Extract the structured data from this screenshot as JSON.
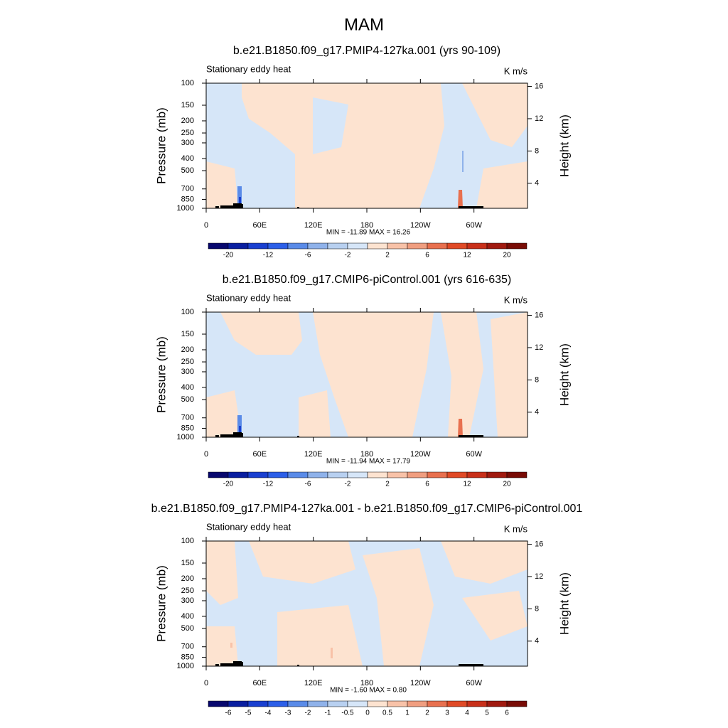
{
  "title": "MAM",
  "chart_data": [
    {
      "type": "contour",
      "title": "b.e21.B1850.f09_g17.PMIP4-127ka.001 (yrs 90-109)",
      "left_label": "Stationary eddy heat",
      "right_label": "K m/s",
      "ylabel": "Pressure (mb)",
      "y2label": "Height (km)",
      "xlim": [
        0,
        360
      ],
      "xticks": [
        0,
        {
          "value": 60,
          "label": "60E"
        },
        {
          "value": 120,
          "label": "120E"
        },
        180,
        {
          "value": 240,
          "label": "120W"
        },
        {
          "value": 300,
          "label": "60W"
        }
      ],
      "ylim": [
        1000,
        100
      ],
      "yscale": "log",
      "yticks": [
        100,
        150,
        200,
        250,
        300,
        400,
        500,
        700,
        850,
        1000
      ],
      "y2lim": [
        0.9,
        16.4
      ],
      "y2ticks": [
        4,
        8,
        12,
        16
      ],
      "stats": "MIN = -11.89  MAX =  16.26",
      "colorbar": {
        "colors": [
          "#08086e",
          "#0a1fa0",
          "#1a40d0",
          "#2c5fe8",
          "#5a8be8",
          "#8fb2ea",
          "#b8d0f0",
          "#d6e6f8",
          "#fde3d0",
          "#f8c2a8",
          "#f09e80",
          "#e8704f",
          "#e04a26",
          "#c8301a",
          "#a01a10",
          "#780c06"
        ],
        "labels": [
          -20,
          -12,
          -6,
          -2,
          2,
          6,
          12,
          20
        ]
      }
    },
    {
      "type": "contour",
      "title": "b.e21.B1850.f09_g17.CMIP6-piControl.001 (yrs 616-635)",
      "left_label": "Stationary eddy heat",
      "right_label": "K m/s",
      "ylabel": "Pressure (mb)",
      "y2label": "Height (km)",
      "xlim": [
        0,
        360
      ],
      "xticks": [
        0,
        {
          "value": 60,
          "label": "60E"
        },
        {
          "value": 120,
          "label": "120E"
        },
        180,
        {
          "value": 240,
          "label": "120W"
        },
        {
          "value": 300,
          "label": "60W"
        }
      ],
      "ylim": [
        1000,
        100
      ],
      "yscale": "log",
      "yticks": [
        100,
        150,
        200,
        250,
        300,
        400,
        500,
        700,
        850,
        1000
      ],
      "y2lim": [
        0.9,
        16.4
      ],
      "y2ticks": [
        4,
        8,
        12,
        16
      ],
      "stats": "MIN = -11.94  MAX =  17.79",
      "colorbar": {
        "colors": [
          "#08086e",
          "#0a1fa0",
          "#1a40d0",
          "#2c5fe8",
          "#5a8be8",
          "#8fb2ea",
          "#b8d0f0",
          "#d6e6f8",
          "#fde3d0",
          "#f8c2a8",
          "#f09e80",
          "#e8704f",
          "#e04a26",
          "#c8301a",
          "#a01a10",
          "#780c06"
        ],
        "labels": [
          -20,
          -12,
          -6,
          -2,
          2,
          6,
          12,
          20
        ]
      }
    },
    {
      "type": "contour",
      "title": "b.e21.B1850.f09_g17.PMIP4-127ka.001 - b.e21.B1850.f09_g17.CMIP6-piControl.001",
      "left_label": "Stationary eddy heat",
      "right_label": "K m/s",
      "ylabel": "Pressure (mb)",
      "y2label": "Height (km)",
      "xlim": [
        0,
        360
      ],
      "xticks": [
        0,
        {
          "value": 60,
          "label": "60E"
        },
        {
          "value": 120,
          "label": "120E"
        },
        180,
        {
          "value": 240,
          "label": "120W"
        },
        {
          "value": 300,
          "label": "60W"
        }
      ],
      "ylim": [
        1000,
        100
      ],
      "yscale": "log",
      "yticks": [
        100,
        150,
        200,
        250,
        300,
        400,
        500,
        700,
        850,
        1000
      ],
      "y2lim": [
        0.9,
        16.4
      ],
      "y2ticks": [
        4,
        8,
        12,
        16
      ],
      "stats": "MIN =  -1.60  MAX =   0.80",
      "colorbar": {
        "colors": [
          "#08086e",
          "#0a1fa0",
          "#1a40d0",
          "#2c5fe8",
          "#5a8be8",
          "#8fb2ea",
          "#b8d0f0",
          "#d6e6f8",
          "#fde3d0",
          "#f8c2a8",
          "#f09e80",
          "#e8704f",
          "#e04a26",
          "#c8301a",
          "#a01a10",
          "#780c06"
        ],
        "labels": [
          -6,
          -5,
          -4,
          -3,
          -2,
          -1,
          -0.5,
          0,
          0.5,
          1,
          2,
          3,
          4,
          5,
          6
        ]
      }
    }
  ]
}
